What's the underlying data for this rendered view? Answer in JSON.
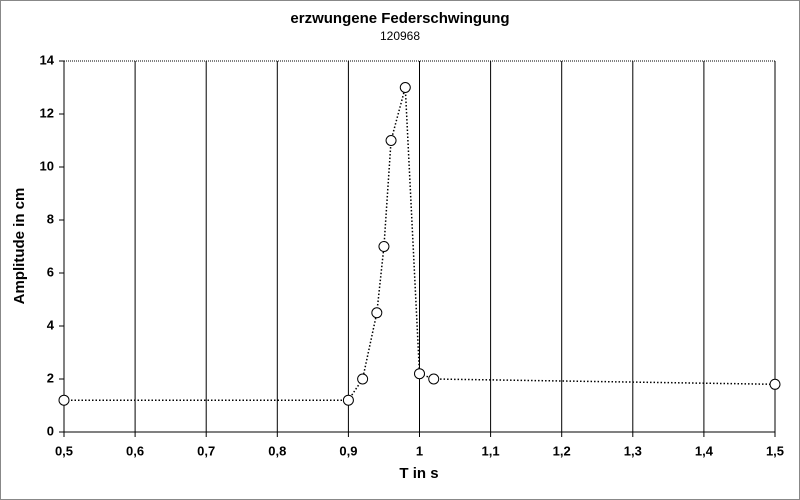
{
  "chart_data": {
    "type": "line",
    "title": "erzwungene Federschwingung",
    "subtitle": "120968",
    "x_label": "T in s",
    "y_label": "Amplitude in cm",
    "x": [
      0.5,
      0.9,
      0.92,
      0.94,
      0.95,
      0.96,
      0.98,
      1.0,
      1.02,
      1.5
    ],
    "values": [
      1.2,
      1.2,
      2.0,
      4.5,
      7.0,
      11.0,
      13.0,
      2.2,
      2.0,
      1.8
    ],
    "color": "#000000",
    "xlim": [
      0.5,
      1.5
    ],
    "xticks": [
      {
        "value": 0.5,
        "label": "0,5"
      },
      {
        "value": 0.6,
        "label": "0,6"
      },
      {
        "value": 0.7,
        "label": "0,7"
      },
      {
        "value": 0.8,
        "label": "0,8"
      },
      {
        "value": 0.9,
        "label": "0,9"
      },
      1,
      {
        "value": 1.1,
        "label": "1,1"
      },
      {
        "value": 1.2,
        "label": "1,2"
      },
      {
        "value": 1.3,
        "label": "1,3"
      },
      {
        "value": 1.4,
        "label": "1,4"
      },
      {
        "value": 1.5,
        "label": "1,5"
      }
    ],
    "ylim": [
      0,
      14
    ],
    "yticks": [
      0,
      2,
      4,
      6,
      8,
      10,
      12,
      14
    ],
    "grid": "x"
  }
}
